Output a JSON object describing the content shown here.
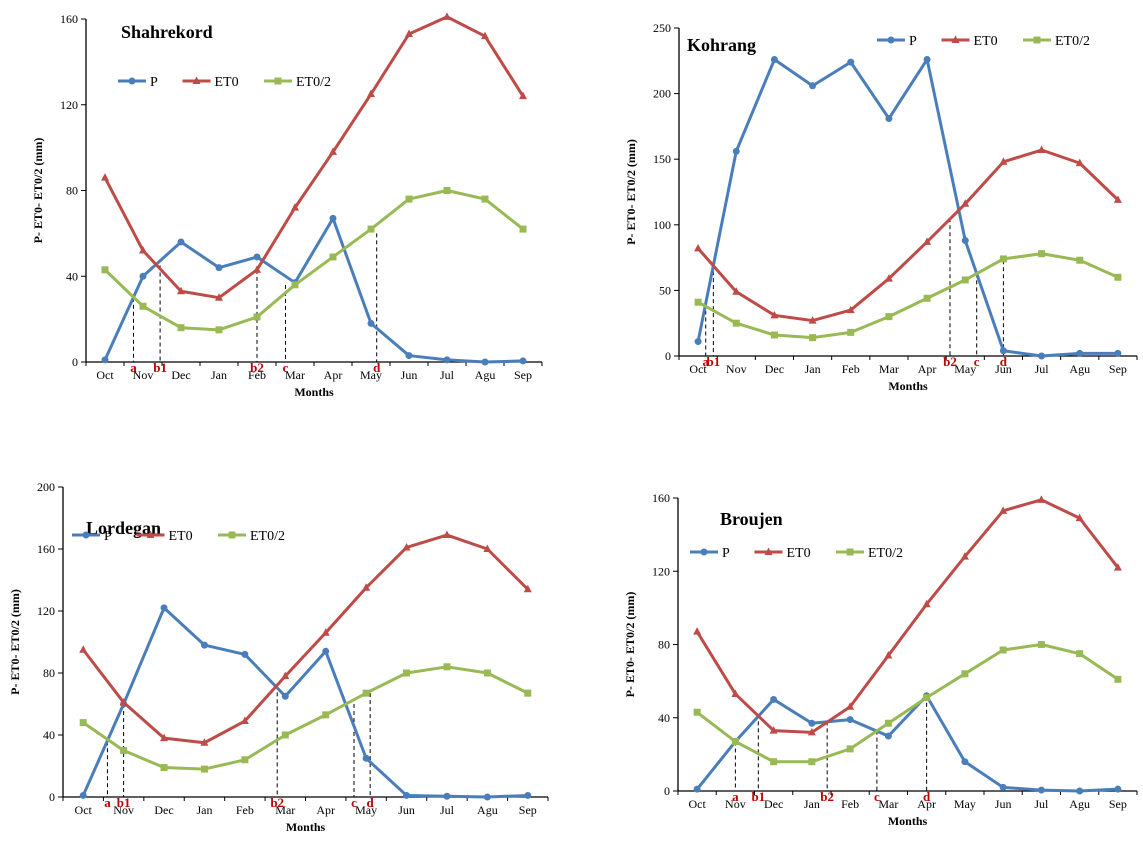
{
  "chart_data": [
    {
      "type": "line",
      "title": "Shahrekord",
      "xlabel": "Months",
      "ylabel": "P- ET0- ET0/2 (mm)",
      "categories": [
        "Oct",
        "Nov",
        "Dec",
        "Jan",
        "Feb",
        "Mar",
        "Apr",
        "May",
        "Jun",
        "Jul",
        "Agu",
        "Sep"
      ],
      "ylim": [
        0,
        160
      ],
      "yticks": [
        0,
        40,
        80,
        120,
        160
      ],
      "legend": "top-left",
      "grid": false,
      "series": [
        {
          "name": "P",
          "color": "#4a7ebb",
          "marker": "circle",
          "values": [
            1,
            40,
            56,
            44,
            49,
            37,
            67,
            18,
            3,
            1,
            0,
            0.5
          ]
        },
        {
          "name": "ET0",
          "color": "#be4b48",
          "marker": "triangle",
          "values": [
            86,
            52,
            33,
            30,
            43,
            72,
            98,
            125,
            153,
            161,
            152,
            124
          ]
        },
        {
          "name": "ET0/2",
          "color": "#98b954",
          "marker": "square",
          "values": [
            43,
            26,
            16,
            15,
            21,
            36,
            49,
            62,
            76,
            80,
            76,
            62
          ]
        }
      ],
      "annotations": [
        {
          "label": "a",
          "x": 0.75,
          "y": 30
        },
        {
          "label": "b1",
          "x": 1.45,
          "y": 45
        },
        {
          "label": "b2",
          "x": 4.0,
          "y": 43
        },
        {
          "label": "c",
          "x": 4.75,
          "y": 36
        },
        {
          "label": "d",
          "x": 7.15,
          "y": 60
        }
      ]
    },
    {
      "type": "line",
      "title": "Kohrang",
      "xlabel": "Months",
      "ylabel": "P- ET0- ET0/2 (mm)",
      "categories": [
        "Oct",
        "Nov",
        "Dec",
        "Jan",
        "Feb",
        "Mar",
        "Apr",
        "May",
        "Jun",
        "Jul",
        "Agu",
        "Sep"
      ],
      "ylim": [
        0,
        250
      ],
      "yticks": [
        0,
        50,
        100,
        150,
        200,
        250
      ],
      "legend": "top-right",
      "grid": false,
      "series": [
        {
          "name": "P",
          "color": "#4a7ebb",
          "marker": "circle",
          "values": [
            11,
            156,
            226,
            206,
            224,
            181,
            226,
            88,
            4,
            0,
            2,
            2
          ]
        },
        {
          "name": "ET0",
          "color": "#be4b48",
          "marker": "triangle",
          "values": [
            82,
            49,
            31,
            27,
            35,
            59,
            87,
            116,
            148,
            157,
            147,
            119
          ]
        },
        {
          "name": "ET0/2",
          "color": "#98b954",
          "marker": "square",
          "values": [
            41,
            25,
            16,
            14,
            18,
            30,
            44,
            58,
            74,
            78,
            73,
            60
          ]
        }
      ],
      "annotations": [
        {
          "label": "a",
          "x": 0.2,
          "y": 40
        },
        {
          "label": "b1",
          "x": 0.4,
          "y": 70
        },
        {
          "label": "b2",
          "x": 6.6,
          "y": 105
        },
        {
          "label": "c",
          "x": 7.3,
          "y": 63
        },
        {
          "label": "d",
          "x": 8.0,
          "y": 73
        }
      ]
    },
    {
      "type": "line",
      "title": "Lordegan",
      "xlabel": "Months",
      "ylabel": "P- ET0- ET0/2 (mm)",
      "categories": [
        "Oct",
        "Nov",
        "Dec",
        "Jan",
        "Feb",
        "Mar",
        "Apr",
        "May",
        "Jun",
        "Jul",
        "Agu",
        "Sep"
      ],
      "ylim": [
        0,
        200
      ],
      "yticks": [
        0,
        40,
        80,
        120,
        160,
        200
      ],
      "legend": "top-left",
      "grid": false,
      "series": [
        {
          "name": "P",
          "color": "#4a7ebb",
          "marker": "circle",
          "values": [
            1,
            60,
            122,
            98,
            92,
            65,
            94,
            25,
            1,
            0.5,
            0,
            1
          ]
        },
        {
          "name": "ET0",
          "color": "#be4b48",
          "marker": "triangle",
          "values": [
            95,
            61,
            38,
            35,
            49,
            78,
            106,
            135,
            161,
            169,
            160,
            134
          ]
        },
        {
          "name": "ET0/2",
          "color": "#98b954",
          "marker": "square",
          "values": [
            48,
            30,
            19,
            18,
            24,
            40,
            53,
            67,
            80,
            84,
            80,
            67
          ]
        }
      ],
      "annotations": [
        {
          "label": "a",
          "x": 0.6,
          "y": 36
        },
        {
          "label": "b1",
          "x": 1.0,
          "y": 60
        },
        {
          "label": "b2",
          "x": 4.8,
          "y": 72
        },
        {
          "label": "c",
          "x": 6.7,
          "y": 60
        },
        {
          "label": "d",
          "x": 7.1,
          "y": 67
        }
      ]
    },
    {
      "type": "line",
      "title": "Broujen",
      "xlabel": "Months",
      "ylabel": "P- ET0- ET0/2 (mm)",
      "categories": [
        "Oct",
        "Nov",
        "Dec",
        "Jan",
        "Feb",
        "Mar",
        "Apr",
        "May",
        "Jun",
        "Jul",
        "Agu",
        "Sep"
      ],
      "ylim": [
        0,
        160
      ],
      "yticks": [
        0,
        40,
        80,
        120,
        160
      ],
      "legend": "top-left",
      "grid": false,
      "series": [
        {
          "name": "P",
          "color": "#4a7ebb",
          "marker": "circle",
          "values": [
            1,
            27,
            50,
            37,
            39,
            30,
            52,
            16,
            2,
            0.5,
            0,
            1
          ]
        },
        {
          "name": "ET0",
          "color": "#be4b48",
          "marker": "triangle",
          "values": [
            87,
            53,
            33,
            32,
            46,
            74,
            102,
            128,
            153,
            159,
            149,
            122
          ]
        },
        {
          "name": "ET0/2",
          "color": "#98b954",
          "marker": "square",
          "values": [
            43,
            27,
            16,
            16,
            23,
            37,
            51,
            64,
            77,
            80,
            75,
            61
          ]
        }
      ],
      "annotations": [
        {
          "label": "a",
          "x": 1.0,
          "y": 27
        },
        {
          "label": "b1",
          "x": 1.6,
          "y": 38
        },
        {
          "label": "b2",
          "x": 3.4,
          "y": 38
        },
        {
          "label": "c",
          "x": 4.7,
          "y": 33
        },
        {
          "label": "d",
          "x": 6.0,
          "y": 52
        }
      ]
    }
  ]
}
